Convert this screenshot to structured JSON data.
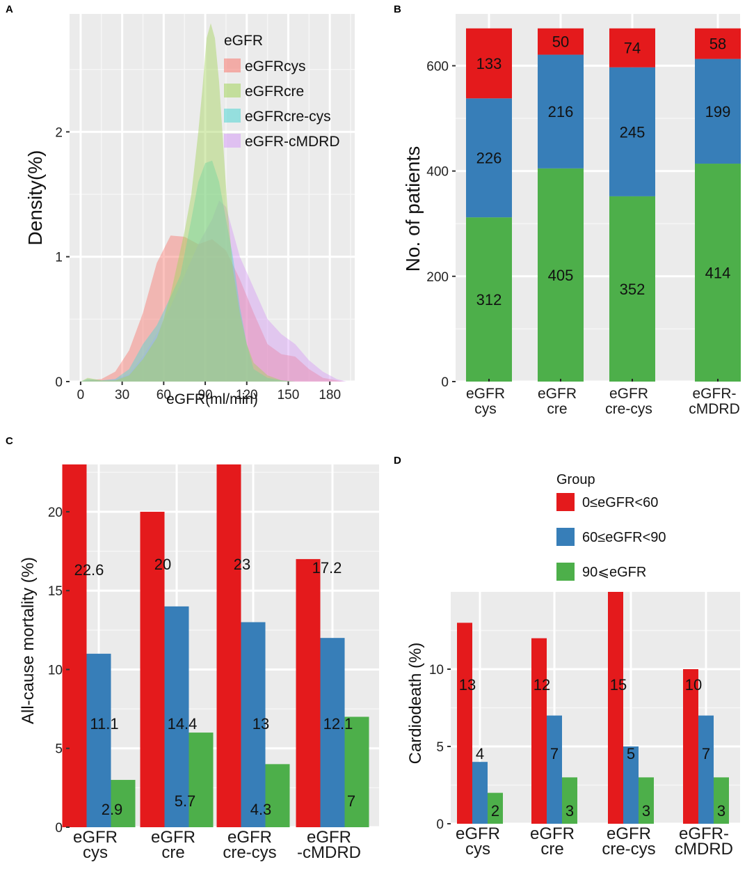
{
  "colors": {
    "red": "#e41a1c",
    "blue": "#377eb8",
    "green": "#4daf4a",
    "panel_bg": "#ebebeb",
    "grid": "#ffffff",
    "d_cys": "#f8766d",
    "d_cre": "#a3d35a",
    "d_crecys": "#4fd6d3",
    "d_mdrd": "#d59cf5"
  },
  "legend_d": {
    "title": "Group",
    "items": [
      "0≤eGFR<60",
      "60≤eGFR<90",
      "90⩽eGFR"
    ]
  },
  "chart_data": [
    {
      "id": "A",
      "panel_label": "A",
      "type": "area",
      "title": "",
      "xlabel": "eGFR(ml/min)",
      "ylabel": "Density(%)",
      "xlim": [
        -8,
        198
      ],
      "ylim": [
        0,
        2.9
      ],
      "xticks": [
        "0",
        "30",
        "60",
        "90",
        "120",
        "150",
        "180"
      ],
      "xtick_values": [
        0,
        30,
        60,
        90,
        120,
        150,
        180
      ],
      "yticks": [
        "0",
        "1",
        "2"
      ],
      "ytick_values": [
        0,
        1,
        2
      ],
      "legend": {
        "title": "eGFR",
        "entries": [
          "eGFRcys",
          "eGFRcre",
          "eGFRcre-cys",
          "eGFR-cMDRD"
        ]
      },
      "series": [
        {
          "name": "eGFRcys",
          "x": [
            0,
            5,
            15,
            25,
            35,
            45,
            55,
            65,
            75,
            85,
            95,
            105,
            115,
            125,
            135,
            145,
            155,
            165,
            175,
            185,
            190
          ],
          "y": [
            0,
            0.01,
            0.02,
            0.08,
            0.25,
            0.55,
            0.95,
            1.17,
            1.16,
            1.1,
            1.14,
            1.05,
            0.82,
            0.55,
            0.3,
            0.22,
            0.2,
            0.1,
            0.03,
            0.01,
            0
          ]
        },
        {
          "name": "eGFRcre",
          "x": [
            0,
            5,
            15,
            25,
            35,
            45,
            55,
            60,
            65,
            70,
            75,
            80,
            85,
            88,
            91,
            94,
            97,
            100,
            103,
            106,
            110,
            115,
            120,
            125,
            135,
            145,
            155,
            165,
            175,
            190
          ],
          "y": [
            0,
            0.03,
            0.01,
            0.01,
            0.05,
            0.18,
            0.35,
            0.5,
            0.7,
            0.95,
            1.2,
            1.5,
            2.0,
            2.35,
            2.75,
            2.87,
            2.75,
            2.4,
            1.9,
            1.4,
            0.9,
            0.55,
            0.3,
            0.15,
            0.05,
            0.01,
            0,
            0,
            0,
            0
          ]
        },
        {
          "name": "eGFRcre-cys",
          "x": [
            0,
            5,
            15,
            25,
            35,
            45,
            55,
            65,
            72,
            80,
            85,
            90,
            95,
            100,
            105,
            110,
            115,
            120,
            125,
            135,
            145,
            155,
            165,
            190
          ],
          "y": [
            0,
            0.02,
            0.01,
            0.02,
            0.1,
            0.3,
            0.45,
            0.68,
            0.85,
            1.3,
            1.6,
            1.75,
            1.77,
            1.6,
            1.3,
            1.0,
            0.6,
            0.3,
            0.1,
            0.03,
            0.01,
            0,
            0,
            0
          ]
        },
        {
          "name": "eGFR-cMDRD",
          "x": [
            0,
            5,
            15,
            25,
            35,
            45,
            55,
            65,
            75,
            85,
            95,
            100,
            105,
            115,
            125,
            135,
            145,
            155,
            165,
            175,
            185,
            192
          ],
          "y": [
            0,
            0.02,
            0.01,
            0.02,
            0.06,
            0.2,
            0.38,
            0.6,
            0.85,
            1.1,
            1.3,
            1.45,
            1.4,
            1.0,
            0.75,
            0.5,
            0.38,
            0.3,
            0.17,
            0.08,
            0.02,
            0
          ]
        }
      ]
    },
    {
      "id": "B",
      "panel_label": "B",
      "type": "bar",
      "title": "",
      "xlabel": "",
      "ylabel": "No.  of  patients",
      "categories": [
        "eGFR\ncys",
        "eGFR\ncre",
        "eGFR\ncre-cys",
        "eGFR-\ncMDRD"
      ],
      "ylim": [
        0,
        672
      ],
      "yticks": [
        "0",
        "200",
        "400",
        "600"
      ],
      "ytick_values": [
        0,
        200,
        400,
        600
      ],
      "stacked": true,
      "series": [
        {
          "name": "90⩽eGFR",
          "values": [
            312,
            405,
            352,
            414
          ]
        },
        {
          "name": "60≤eGFR<90",
          "values": [
            226,
            216,
            245,
            199
          ]
        },
        {
          "name": "0≤eGFR<60",
          "values": [
            133,
            50,
            74,
            58
          ]
        }
      ]
    },
    {
      "id": "C",
      "panel_label": "C",
      "type": "bar",
      "title": "",
      "xlabel": "",
      "ylabel": "All-cause mortality (%)",
      "categories": [
        "eGFR\ncys",
        "eGFR\ncre",
        "eGFR\ncre-cys",
        "eGFR\n-cMDRD"
      ],
      "ylim": [
        0,
        23
      ],
      "yticks": [
        "0",
        "5",
        "10",
        "15",
        "20"
      ],
      "ytick_values": [
        0,
        5,
        10,
        15,
        20
      ],
      "series": [
        {
          "name": "0≤eGFR<60",
          "values": [
            23,
            20,
            23,
            17
          ],
          "labels": [
            "22.6",
            "20",
            "23",
            "17.2"
          ]
        },
        {
          "name": "60≤eGFR<90",
          "values": [
            11,
            14,
            13,
            12
          ],
          "labels": [
            "11.1",
            "14.4",
            "13",
            "12.1"
          ]
        },
        {
          "name": "90⩽eGFR",
          "values": [
            3,
            6,
            4,
            7
          ],
          "labels": [
            "2.9",
            "5.7",
            "4.3",
            "7"
          ]
        }
      ]
    },
    {
      "id": "D",
      "panel_label": "D",
      "type": "bar",
      "title": "",
      "xlabel": "",
      "ylabel": "Cardiodeath (%)",
      "categories": [
        "eGFR\ncys",
        "eGFR\ncre",
        "eGFR\ncre-cys",
        "eGFR-\ncMDRD"
      ],
      "ylim": [
        0,
        15
      ],
      "yticks": [
        "0",
        "5",
        "10"
      ],
      "ytick_values": [
        0,
        5,
        10
      ],
      "series": [
        {
          "name": "0≤eGFR<60",
          "values": [
            13,
            12,
            15,
            10
          ],
          "labels": [
            "13",
            "12",
            "15",
            "10"
          ]
        },
        {
          "name": "60≤eGFR<90",
          "values": [
            4,
            7,
            5,
            7
          ],
          "labels": [
            "4",
            "7",
            "5",
            "7"
          ]
        },
        {
          "name": "90⩽eGFR",
          "values": [
            2,
            3,
            3,
            3
          ],
          "labels": [
            "2",
            "3",
            "3",
            "3"
          ]
        }
      ]
    }
  ]
}
